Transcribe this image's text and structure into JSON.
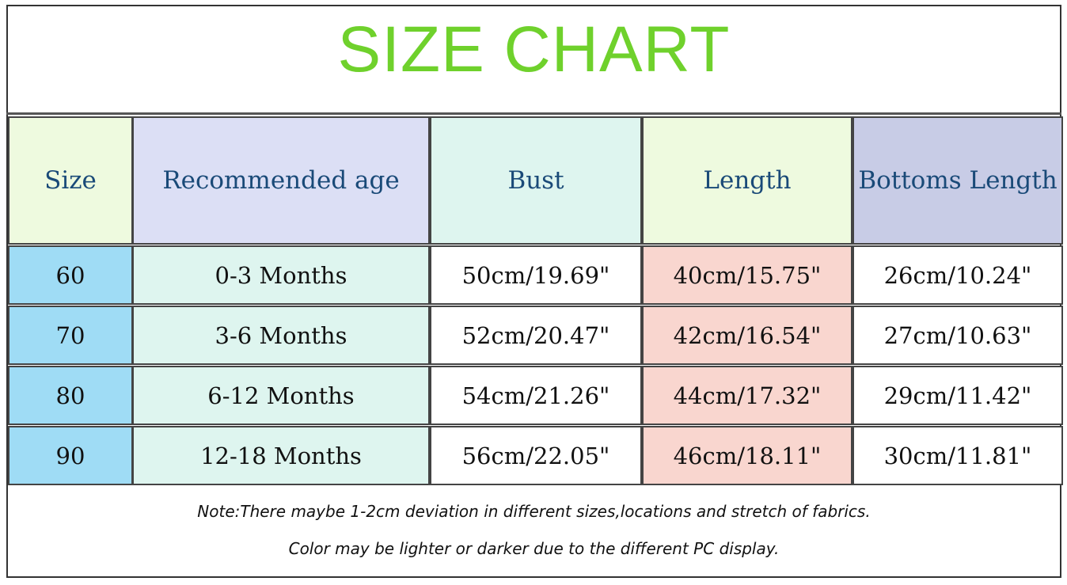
{
  "title": "SIZE CHART",
  "headers": [
    "Size",
    "Recommended age",
    "Bust",
    "Length",
    "Bottoms Length"
  ],
  "rows": [
    [
      "60",
      "0-3 Months",
      "50cm/19.69\"",
      "40cm/15.75\"",
      "26cm/10.24\""
    ],
    [
      "70",
      "3-6 Months",
      "52cm/20.47\"",
      "42cm/16.54\"",
      "27cm/10.63\""
    ],
    [
      "80",
      "6-12 Months",
      "54cm/21.26\"",
      "44cm/17.32\"",
      "29cm/11.42\""
    ],
    [
      "90",
      "12-18 Months",
      "56cm/22.05\"",
      "46cm/18.11\"",
      "30cm/11.81\""
    ]
  ],
  "notes": [
    "Note:There maybe 1-2cm deviation in different sizes,locations and stretch of fabrics.",
    "Color may be lighter or darker due to the different PC display."
  ],
  "colors": {
    "title": "#6fd12c",
    "header_bg": [
      "#eefadf",
      "#dcdff5",
      "#def5ef",
      "#eefadf",
      "#c8cce6"
    ],
    "column_bg": [
      "#9fdcf5",
      "#def5ef",
      "#ffffff",
      "#f9d6cf",
      "#ffffff"
    ]
  }
}
